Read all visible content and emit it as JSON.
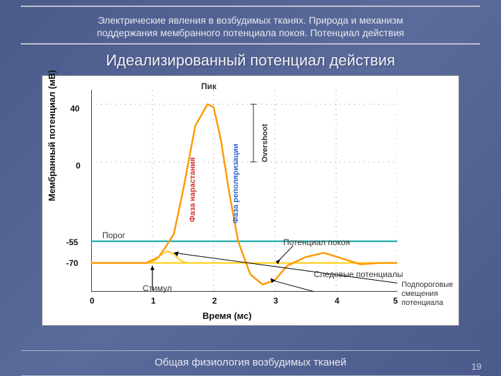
{
  "header_line1": "Электрические явления в возбудимых тканях. Природа и механизм",
  "header_line2": "поддержания мембранного потенциала покоя. Потенциал действия",
  "title": "Идеализированный потенциал действия",
  "footer": "Общая физиология возбудимых тканей",
  "page_number": "19",
  "chart": {
    "type": "line",
    "background_color": "#ffffff",
    "grid_style": "dotted",
    "grid_color": "#888888",
    "line_color": "#ff9900",
    "line_width": 2.5,
    "threshold_line_color": "#00a0a0",
    "resting_line_color": "#ffcc00",
    "xlabel": "Время (мс)",
    "ylabel": "Мембранный потенциал (мВ)",
    "xlim": [
      0,
      5
    ],
    "ylim": [
      -90,
      50
    ],
    "xticks": [
      0,
      1,
      2,
      3,
      4,
      5
    ],
    "yticks": [
      -70,
      -55,
      0,
      40
    ],
    "label_fontsize": 13,
    "tick_fontsize": 12,
    "resting_level": -70,
    "threshold_level": -55,
    "series_x": [
      0,
      0.7,
      0.9,
      1.1,
      1.2,
      1.35,
      1.5,
      1.7,
      1.9,
      2.0,
      2.12,
      2.25,
      2.4,
      2.6,
      2.8,
      3.0,
      3.2,
      3.5,
      3.8,
      4.1,
      4.4,
      4.7,
      5.0
    ],
    "series_y": [
      -70,
      -70,
      -70,
      -66,
      -60,
      -50,
      -20,
      25,
      40,
      38,
      15,
      -20,
      -55,
      -78,
      -85,
      -82,
      -72,
      -66,
      -63,
      -67,
      -71,
      -70,
      -70
    ],
    "subthreshold_x": [
      0.95,
      1.05,
      1.15,
      1.25,
      1.35,
      1.45,
      1.55
    ],
    "subthreshold_y": [
      -70,
      -68,
      -64,
      -62,
      -64,
      -68,
      -70
    ],
    "annotations": {
      "peak": "Пик",
      "threshold": "Порог",
      "stimulus": "Стимул",
      "resting": "Потенциал покоя",
      "after": "Следовые потенциалы",
      "subthreshold": "Подпороговые смещения потенциала",
      "overshoot": "Overshoot",
      "depol": "Фаза нарастания",
      "repol": "Фаза реполяризации"
    },
    "ann_colors": {
      "depol": "#cc3333",
      "repol": "#3366cc",
      "overshoot": "#333333",
      "default": "#222222"
    }
  }
}
